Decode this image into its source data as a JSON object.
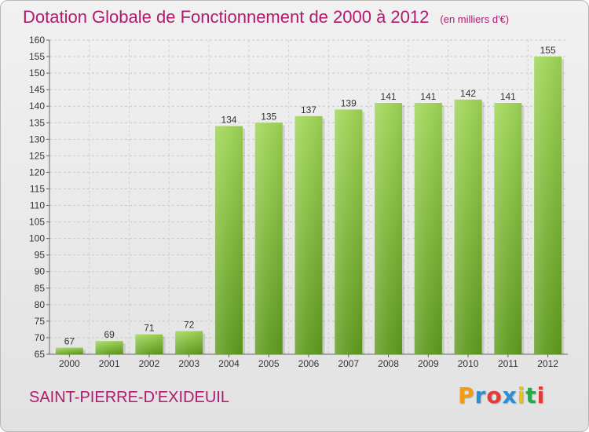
{
  "title": "Dotation Globale de Fonctionnement de 2000 à 2012",
  "subtitle": "(en milliers d'€)",
  "commune": "SAINT-PIERRE-D'EXIDEUIL",
  "logo": {
    "letters": [
      "P",
      "r",
      "o",
      "x",
      "i",
      "t",
      "i"
    ],
    "colors": [
      "#f39c12",
      "#2a8fd6",
      "#e23b3b",
      "#2a8fd6",
      "#e8c21a",
      "#2aa84a",
      "#e23b3b"
    ]
  },
  "colors": {
    "bar_top": "#9ed455",
    "bar_bottom": "#5f9a1f",
    "title": "#b01a6e"
  },
  "chart_data": {
    "type": "bar",
    "categories": [
      "2000",
      "2001",
      "2002",
      "2003",
      "2004",
      "2005",
      "2006",
      "2007",
      "2008",
      "2009",
      "2010",
      "2011",
      "2012"
    ],
    "values": [
      67,
      69,
      71,
      72,
      134,
      135,
      137,
      139,
      141,
      141,
      142,
      141,
      155
    ],
    "title": "Dotation Globale de Fonctionnement de 2000 à 2012",
    "subtitle": "(en milliers d'€)",
    "xlabel": "",
    "ylabel": "",
    "ylim": [
      65,
      160
    ],
    "yticks": [
      65,
      70,
      75,
      80,
      85,
      90,
      95,
      100,
      105,
      110,
      115,
      120,
      125,
      130,
      135,
      140,
      145,
      150,
      155,
      160
    ],
    "grid": true,
    "legend": "none"
  }
}
